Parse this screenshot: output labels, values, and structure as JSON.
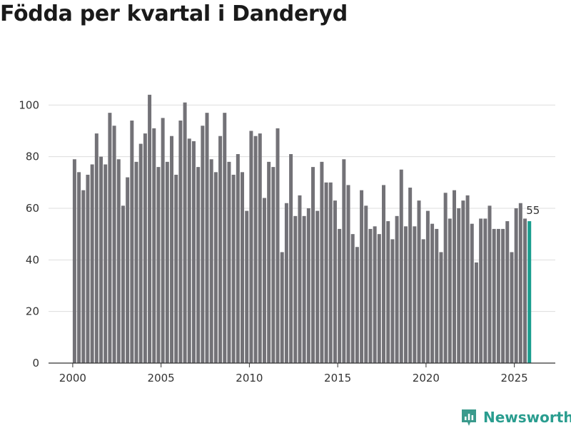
{
  "title": "Födda per kvartal i Danderyd",
  "brand": {
    "name": "Newsworthy",
    "color": "#3a9a8c"
  },
  "colors": {
    "bar": "#737277",
    "highlight": "#1a9e8f",
    "grid": "#dddddd",
    "axis": "#333333"
  },
  "chart_data": {
    "type": "bar",
    "title": "Födda per kvartal i Danderyd",
    "xlabel": "",
    "ylabel": "",
    "ylim": [
      0,
      110
    ],
    "yticks": [
      0,
      20,
      40,
      60,
      80,
      100
    ],
    "xticks": [
      2000,
      2005,
      2010,
      2015,
      2020,
      2025
    ],
    "x_start": 2000,
    "quarters_per_year": 4,
    "values": [
      79,
      74,
      67,
      73,
      77,
      89,
      80,
      77,
      97,
      92,
      79,
      61,
      72,
      94,
      78,
      85,
      89,
      104,
      91,
      76,
      95,
      78,
      88,
      73,
      94,
      101,
      87,
      86,
      76,
      92,
      97,
      79,
      74,
      88,
      97,
      78,
      73,
      81,
      74,
      59,
      90,
      88,
      89,
      64,
      78,
      76,
      91,
      43,
      62,
      81,
      57,
      65,
      57,
      60,
      76,
      59,
      78,
      70,
      70,
      63,
      52,
      79,
      69,
      50,
      45,
      67,
      61,
      52,
      53,
      50,
      69,
      55,
      48,
      57,
      75,
      53,
      68,
      53,
      63,
      48,
      59,
      54,
      52,
      43,
      66,
      56,
      67,
      60,
      63,
      65,
      54,
      39,
      56,
      56,
      61,
      52,
      52,
      52,
      55,
      43,
      60,
      62,
      56,
      55
    ],
    "highlight_index": 103,
    "highlight_label": "55"
  }
}
